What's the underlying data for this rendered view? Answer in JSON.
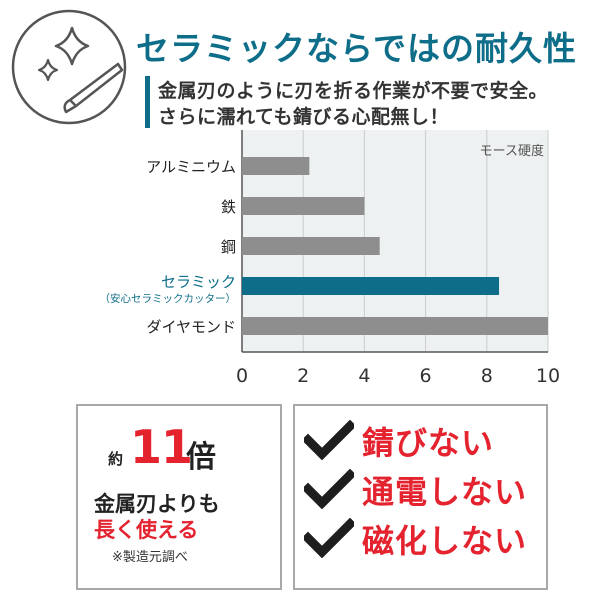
{
  "header": {
    "title": "セラミックならではの耐久性",
    "subtitle_line1": "金属刃のように刃を折る作業が不要で安全。",
    "subtitle_line2": "さらに濡れても錆びる心配無し！",
    "icon": "sparkle-blade-icon"
  },
  "chart_data": {
    "type": "bar",
    "orientation": "horizontal",
    "title": "モース硬度",
    "categories": [
      "アルミニウム",
      "鉄",
      "鋼",
      "セラミック",
      "ダイヤモンド"
    ],
    "category_sublabels": [
      "",
      "",
      "",
      "（安心セラミックカッター）",
      ""
    ],
    "values": [
      2.2,
      4.0,
      4.5,
      8.4,
      10.0
    ],
    "highlight_index": 3,
    "xlim": [
      0,
      10
    ],
    "xticks": [
      "0",
      "2",
      "4",
      "6",
      "8",
      "10"
    ],
    "grid": true,
    "colors": {
      "bar": "#8e8e8e",
      "highlight": "#0e6e8a",
      "plot_bg": "#eef1f1",
      "grid": "#c9cccc"
    }
  },
  "left_box": {
    "prefix": "約",
    "number": "11",
    "unit": "倍",
    "line1": "金属刃よりも",
    "line2": "長く使える",
    "note": "※製造元調べ"
  },
  "features": [
    {
      "icon": "check-icon",
      "label": "錆びない"
    },
    {
      "icon": "check-icon",
      "label": "通電しない"
    },
    {
      "icon": "check-icon",
      "label": "磁化しない"
    }
  ],
  "colors": {
    "accent": "#0e6e8a",
    "red": "#e4232f",
    "border": "#a8a8a8"
  }
}
